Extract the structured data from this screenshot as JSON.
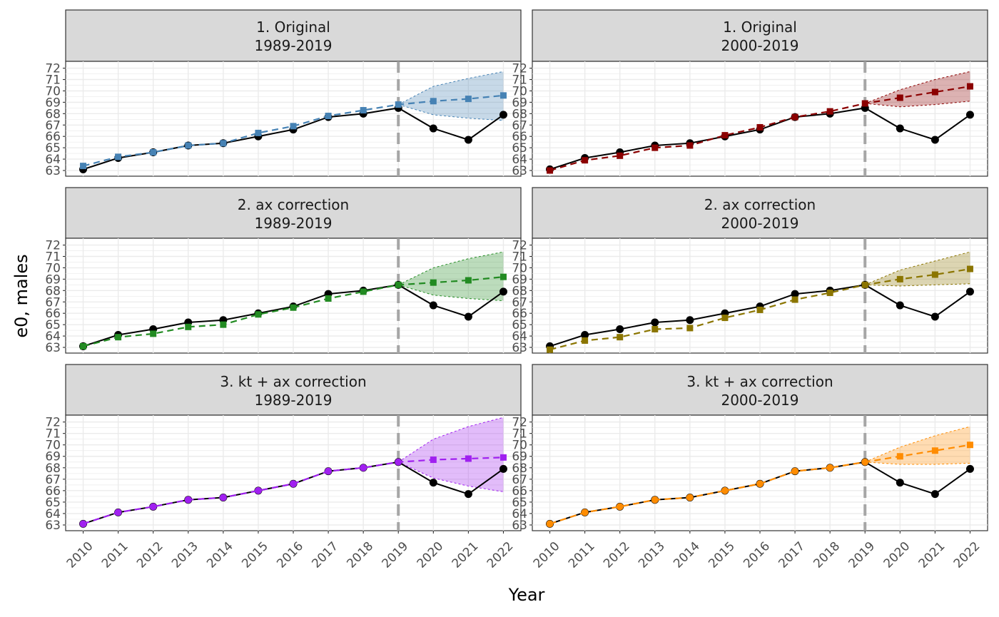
{
  "chart_data": {
    "type": "line",
    "xlabel": "Year",
    "ylabel": "e0, males",
    "x": [
      2010,
      2011,
      2012,
      2013,
      2014,
      2015,
      2016,
      2017,
      2018,
      2019,
      2020,
      2021,
      2022
    ],
    "yticks": [
      63,
      64,
      65,
      66,
      67,
      68,
      69,
      70,
      71,
      72
    ],
    "ylim": [
      62.5,
      72.6
    ],
    "xlim": [
      2009.5,
      2022.5
    ],
    "vline_x": 2019,
    "observed": [
      63.1,
      64.1,
      64.6,
      65.2,
      65.4,
      66.0,
      66.6,
      67.7,
      68.0,
      68.5,
      66.7,
      65.7,
      67.9
    ],
    "observed_color": "#000000",
    "vline_color": "#a6a6a6",
    "panels": [
      {
        "strip": [
          "1. Original",
          "1989-2019"
        ],
        "color": "#4682b4",
        "fitted": [
          63.4,
          64.2,
          64.6,
          65.2,
          65.4,
          66.3,
          66.9,
          67.8,
          68.3,
          68.8
        ],
        "forecast": [
          68.8,
          69.1,
          69.3,
          69.6
        ],
        "lower": [
          68.8,
          67.9,
          67.6,
          67.4
        ],
        "upper": [
          68.8,
          70.4,
          71.1,
          71.7
        ]
      },
      {
        "strip": [
          "1. Original",
          "2000-2019"
        ],
        "color": "#8b0000",
        "fitted": [
          63.0,
          63.9,
          64.3,
          65.0,
          65.2,
          66.1,
          66.8,
          67.7,
          68.2,
          68.9
        ],
        "forecast": [
          68.9,
          69.4,
          69.9,
          70.4
        ],
        "lower": [
          68.9,
          68.6,
          68.8,
          69.1
        ],
        "upper": [
          68.9,
          70.1,
          71.0,
          71.7
        ]
      },
      {
        "strip": [
          "2. ax correction",
          "1989-2019"
        ],
        "color": "#228b22",
        "fitted": [
          63.1,
          63.9,
          64.2,
          64.8,
          65.0,
          65.9,
          66.5,
          67.3,
          67.9,
          68.5
        ],
        "forecast": [
          68.5,
          68.7,
          68.9,
          69.2
        ],
        "lower": [
          68.5,
          67.6,
          67.3,
          67.1
        ],
        "upper": [
          68.5,
          70.0,
          70.8,
          71.4
        ]
      },
      {
        "strip": [
          "2. ax correction",
          "2000-2019"
        ],
        "color": "#8b7500",
        "fitted": [
          62.8,
          63.6,
          63.9,
          64.6,
          64.7,
          65.6,
          66.3,
          67.2,
          67.8,
          68.5
        ],
        "forecast": [
          68.5,
          69.0,
          69.4,
          69.9
        ],
        "lower": [
          68.5,
          68.4,
          68.5,
          68.6
        ],
        "upper": [
          68.5,
          69.8,
          70.6,
          71.4
        ]
      },
      {
        "strip": [
          "3. kt + ax correction",
          "1989-2019"
        ],
        "color": "#a020f0",
        "fitted": [
          63.1,
          64.1,
          64.6,
          65.2,
          65.4,
          66.0,
          66.6,
          67.7,
          68.0,
          68.5
        ],
        "forecast": [
          68.5,
          68.7,
          68.8,
          68.9
        ],
        "lower": [
          68.5,
          67.1,
          66.4,
          65.9
        ],
        "upper": [
          68.5,
          70.5,
          71.6,
          72.4
        ]
      },
      {
        "strip": [
          "3. kt + ax correction",
          "2000-2019"
        ],
        "color": "#ff8c00",
        "fitted": [
          63.1,
          64.1,
          64.6,
          65.2,
          65.4,
          66.0,
          66.6,
          67.7,
          68.0,
          68.5
        ],
        "forecast": [
          68.5,
          69.0,
          69.5,
          70.0
        ],
        "lower": [
          68.5,
          68.3,
          68.3,
          68.4
        ],
        "upper": [
          68.5,
          69.8,
          70.8,
          71.6
        ]
      }
    ]
  }
}
